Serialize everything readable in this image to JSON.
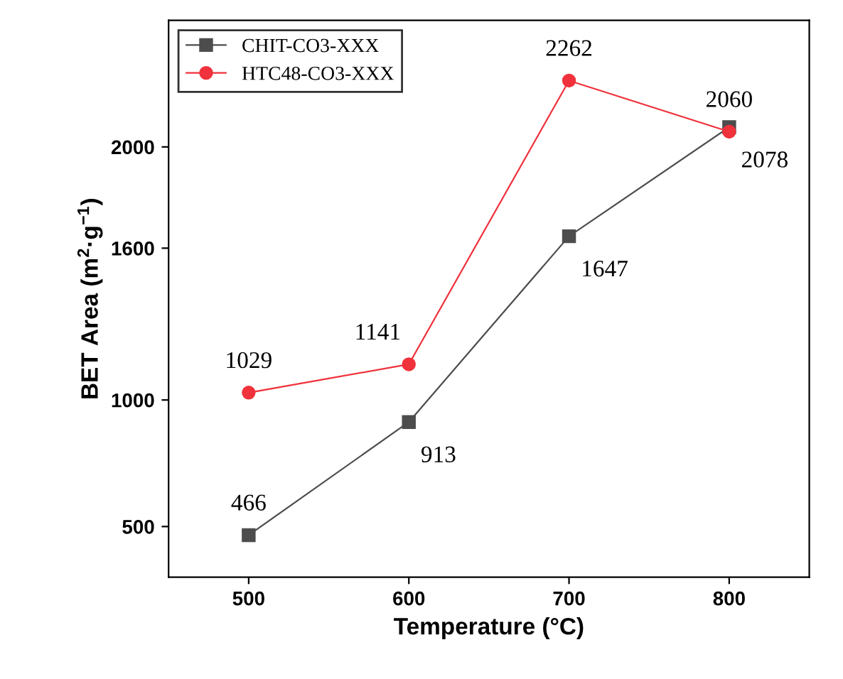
{
  "chart_data": {
    "type": "line",
    "xlabel": "Temperature (°C)",
    "ylabel": "BET Area (m$^{2}$·g$^{−1}$)",
    "x": [
      500,
      600,
      700,
      800
    ],
    "series": [
      {
        "name": "CHIT-CO3-XXX",
        "color": "#4d4d4d",
        "values": [
          466,
          913,
          1647,
          2078
        ],
        "marker": "square"
      },
      {
        "name": "HTC48-CO3-XXX",
        "color": "#f0323c",
        "values": [
          1029,
          1141,
          2262,
          2060
        ],
        "marker": "circle"
      }
    ],
    "xlim": [
      450,
      850
    ],
    "xticks": [
      500,
      600,
      700,
      800
    ],
    "ylim": [
      300,
      2500
    ],
    "yticks": [
      500,
      1000,
      1600,
      2000
    ],
    "data_labels": true,
    "legend": "top left",
    "grid": false,
    "line_style": "solid"
  }
}
